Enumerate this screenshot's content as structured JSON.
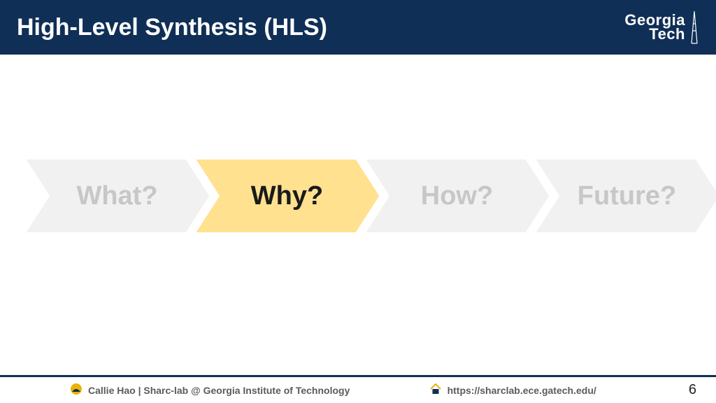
{
  "header": {
    "title": "High-Level Synthesis (HLS)",
    "bg_color": "#0f2f56",
    "title_color": "#ffffff",
    "logo": {
      "line1": "Georgia",
      "line2": "Tech"
    }
  },
  "chevrons": {
    "inactive_fill": "#f1f1f1",
    "inactive_text": "#c7c7c7",
    "active_fill": "#ffe18f",
    "active_text": "#1a1a1a",
    "gap_stroke": "#ffffff",
    "items": [
      {
        "label": "What?",
        "active": false
      },
      {
        "label": "Why?",
        "active": true
      },
      {
        "label": "How?",
        "active": false
      },
      {
        "label": "Future?",
        "active": false
      }
    ],
    "fontsize": 38
  },
  "footer": {
    "author": "Callie Hao | Sharc-lab @ Georgia Institute of Technology",
    "url": "https://sharclab.ece.gatech.edu/",
    "page": "6",
    "rule_color": "#0f2f56"
  }
}
